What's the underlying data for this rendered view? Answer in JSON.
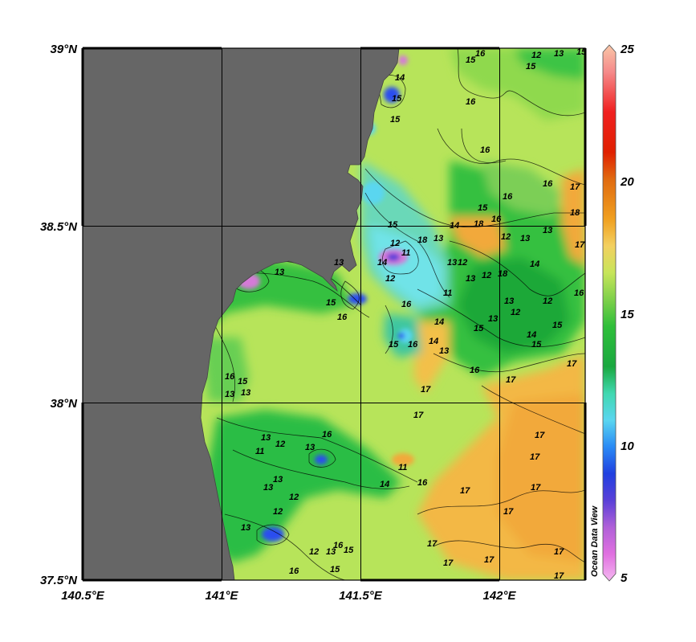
{
  "map": {
    "lat_labels": [
      "39°N",
      "38.5°N",
      "38°N",
      "37.5°N"
    ],
    "lon_labels": [
      "140.5°E",
      "141°E",
      "141.5°E",
      "142°E"
    ],
    "colors": {
      "land": "#666666",
      "sea_base": "#b7e45a",
      "sea_light": "#c9e85a",
      "green": "#34c040",
      "dark_green": "#1ea838",
      "cyan": "#66e0e0",
      "blue": "#2a4ef0",
      "magenta": "#d57ad8",
      "orange": "#f2a93a",
      "pale_orange": "#f5c24a"
    },
    "contour_labels": [
      "11",
      "12",
      "13",
      "14",
      "15",
      "16",
      "17",
      "18"
    ]
  },
  "colorbar": {
    "tick_labels": [
      "25",
      "20",
      "15",
      "10",
      "5"
    ],
    "min": 5,
    "max": 25,
    "watermark": "Ocean Data View",
    "stops": [
      {
        "v": 25,
        "color": "#f9c7a8"
      },
      {
        "v": 24,
        "color": "#f58a8a"
      },
      {
        "v": 22.5,
        "color": "#f02020"
      },
      {
        "v": 21,
        "color": "#e02000"
      },
      {
        "v": 20,
        "color": "#e06a10"
      },
      {
        "v": 18.5,
        "color": "#f0a020"
      },
      {
        "v": 17.5,
        "color": "#f3d060"
      },
      {
        "v": 16.5,
        "color": "#c7e55a"
      },
      {
        "v": 15.5,
        "color": "#7ed04a"
      },
      {
        "v": 14.5,
        "color": "#2fbf3a"
      },
      {
        "v": 13,
        "color": "#1aa840"
      },
      {
        "v": 12,
        "color": "#40d8b0"
      },
      {
        "v": 11,
        "color": "#5ad6f0"
      },
      {
        "v": 10,
        "color": "#2a8af5"
      },
      {
        "v": 9,
        "color": "#2040e0"
      },
      {
        "v": 8,
        "color": "#5a40d8"
      },
      {
        "v": 7,
        "color": "#b060d8"
      },
      {
        "v": 6,
        "color": "#e070e0"
      },
      {
        "v": 5,
        "color": "#f4b8f0"
      }
    ]
  }
}
